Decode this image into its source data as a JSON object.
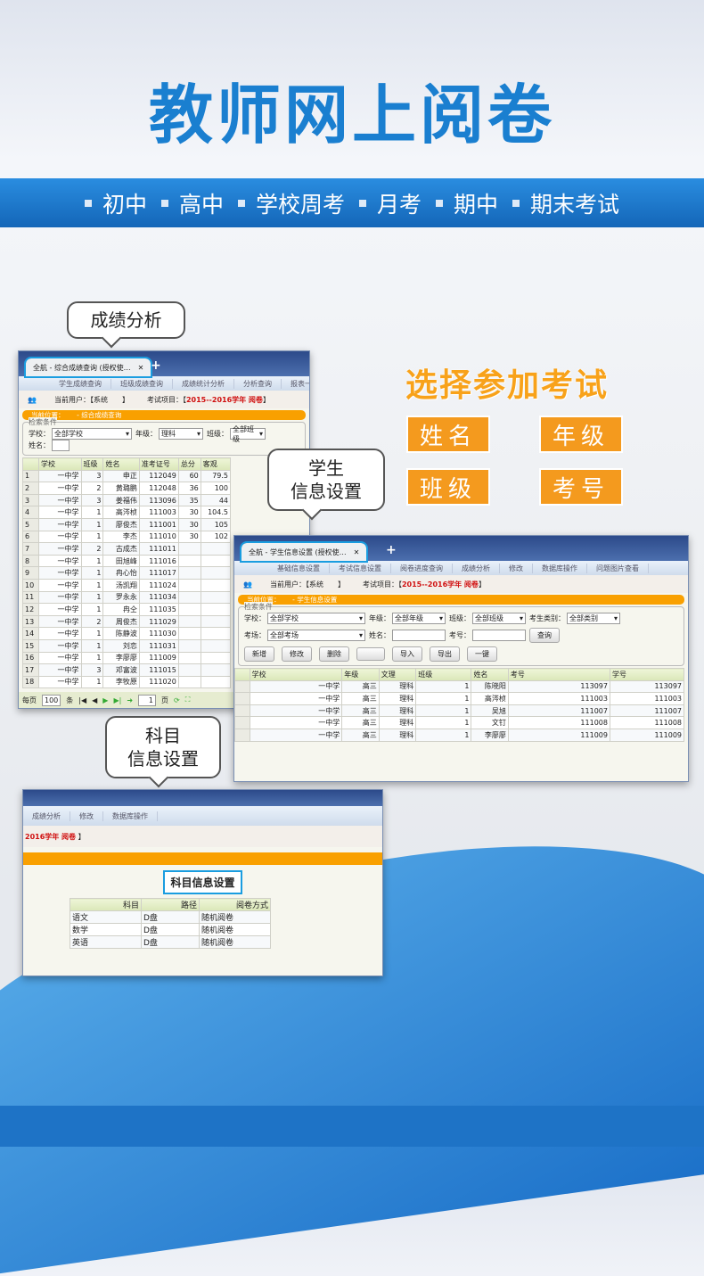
{
  "title": "教师网上阅卷",
  "band": [
    "初中",
    "高中",
    "学校周考",
    "月考",
    "期中",
    "期末考试"
  ],
  "choose": {
    "heading": "选择参加考试",
    "buttons": [
      "姓名",
      "年级",
      "班级",
      "考号"
    ]
  },
  "colors": {
    "brand_blue": "#1a7fd0",
    "orange": "#f49a1e",
    "location_bar": "#f9a000",
    "exam_red": "#d01010"
  },
  "bubbles": {
    "score": "成绩分析",
    "student": [
      "学生",
      "信息设置"
    ],
    "subject": [
      "科目",
      "信息设置"
    ]
  },
  "win1": {
    "tab": "全航 - 综合成绩查询 (授权使…",
    "menu": [
      "学生成绩查询",
      "班级成绩查询",
      "成绩统计分析",
      "分析查询",
      "报表一览"
    ],
    "user_label": "当前用户：【系统　　】",
    "exam_label": "考试项目：【",
    "exam": "2015--2016学年 阅卷",
    "exam_end": "】",
    "location": "当前位置：　　 - 综合成绩查询",
    "search_legend": "检索条件",
    "filters": [
      {
        "label": "学校：",
        "value": "全部学校"
      },
      {
        "label": "年级：",
        "value": "理科"
      },
      {
        "label": "班级：",
        "value": "全部班级"
      },
      {
        "label": "姓名：",
        "value": ""
      }
    ],
    "columns": [
      "学校",
      "班级",
      "姓名",
      "准考证号",
      "总分",
      "客观"
    ],
    "rows": [
      [
        "1",
        "一中学",
        "3",
        "申正",
        "112049",
        "60",
        "79.5"
      ],
      [
        "2",
        "一中学",
        "2",
        "黄璐鹏",
        "112048",
        "36",
        "100"
      ],
      [
        "3",
        "一中学",
        "3",
        "姜福伟",
        "113096",
        "35",
        "44"
      ],
      [
        "4",
        "一中学",
        "1",
        "高涔桢",
        "111003",
        "30",
        "104.5"
      ],
      [
        "5",
        "一中学",
        "1",
        "廖俊杰",
        "111001",
        "30",
        "105"
      ],
      [
        "6",
        "一中学",
        "1",
        "李杰",
        "111010",
        "30",
        "102"
      ],
      [
        "7",
        "一中学",
        "2",
        "古成杰",
        "111011",
        "",
        ""
      ],
      [
        "8",
        "一中学",
        "1",
        "田旭峰",
        "111016",
        "",
        ""
      ],
      [
        "9",
        "一中学",
        "1",
        "冉心怡",
        "111017",
        "",
        ""
      ],
      [
        "10",
        "一中学",
        "1",
        "汤凯翔",
        "111024",
        "",
        ""
      ],
      [
        "11",
        "一中学",
        "1",
        "罗永永",
        "111034",
        "",
        ""
      ],
      [
        "12",
        "一中学",
        "1",
        "冉仝",
        "111035",
        "",
        ""
      ],
      [
        "13",
        "一中学",
        "2",
        "周俊杰",
        "111029",
        "",
        ""
      ],
      [
        "14",
        "一中学",
        "1",
        "陈静波",
        "111030",
        "",
        ""
      ],
      [
        "15",
        "一中学",
        "1",
        "刘恋",
        "111031",
        "",
        ""
      ],
      [
        "16",
        "一中学",
        "1",
        "李廖廖",
        "111009",
        "",
        ""
      ],
      [
        "17",
        "一中学",
        "3",
        "邓富波",
        "111015",
        "",
        ""
      ],
      [
        "18",
        "一中学",
        "1",
        "李牧原",
        "111020",
        "",
        ""
      ]
    ],
    "pager": {
      "per_page": "每页",
      "size": "100",
      "unit": "条",
      "page": "1",
      "page_unit": "页"
    }
  },
  "win2": {
    "tab": "全航 - 学生信息设置 (授权使…",
    "menu": [
      "基础信息设置",
      "考试信息设置",
      "阅卷进度查询",
      "成绩分析",
      "修改",
      "数据库操作",
      "问题图片查看"
    ],
    "user_label": "当前用户：【系统　　】",
    "exam_label": "考试项目：【",
    "exam": "2015--2016学年 阅卷",
    "exam_end": "】",
    "location": "当前位置：　　 - 学生信息设置",
    "search_legend": "检索条件",
    "filters": [
      {
        "label": "学校：",
        "value": "全部学校"
      },
      {
        "label": "年级：",
        "value": "全部年级"
      },
      {
        "label": "班级：",
        "value": "全部班级"
      },
      {
        "label": "考生类别：",
        "value": "全部类别"
      }
    ],
    "filters2": [
      {
        "label": "考场：",
        "value": "全部考场"
      },
      {
        "label": "姓名：",
        "value": ""
      },
      {
        "label": "考号：",
        "value": ""
      }
    ],
    "query": "查询",
    "buttons": [
      "新增",
      "修改",
      "删除",
      "",
      "导入",
      "导出",
      "一键"
    ],
    "columns": [
      "学校",
      "年级",
      "文理",
      "班级",
      "姓名",
      "考号",
      "学号"
    ],
    "rows": [
      [
        "一中学",
        "高三",
        "理科",
        "1",
        "陈晓阳",
        "113097",
        "113097"
      ],
      [
        "一中学",
        "高三",
        "理科",
        "1",
        "高涔桢",
        "111003",
        "111003"
      ],
      [
        "一中学",
        "高三",
        "理科",
        "1",
        "吴旭",
        "111007",
        "111007"
      ],
      [
        "一中学",
        "高三",
        "理科",
        "1",
        "文钉",
        "111008",
        "111008"
      ],
      [
        "一中学",
        "高三",
        "理科",
        "1",
        "李廖廖",
        "111009",
        "111009"
      ]
    ]
  },
  "win3": {
    "menu": [
      "成绩分析",
      "修改",
      "数据库操作"
    ],
    "exam": "2016学年 阅卷",
    "exam_end": "】",
    "heading": "科目信息设置",
    "columns": [
      "科目",
      "路径",
      "阅卷方式"
    ],
    "rows": [
      [
        "语文",
        "D盘",
        "随机阅卷"
      ],
      [
        "数学",
        "D盘",
        "随机阅卷"
      ],
      [
        "英语",
        "D盘",
        "随机阅卷"
      ]
    ]
  }
}
